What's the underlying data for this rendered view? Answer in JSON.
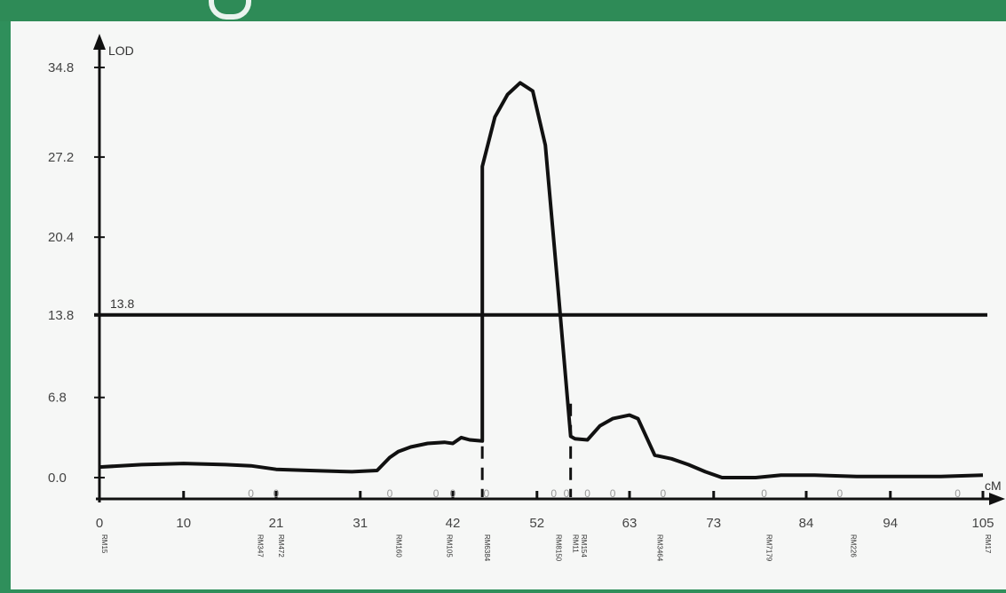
{
  "chart_data": {
    "type": "line",
    "title": "",
    "ylabel": "LOD",
    "xlabel": "cM",
    "ylim": [
      0,
      34.8
    ],
    "xlim": [
      0,
      105
    ],
    "y_ticks": [
      "0.0",
      "6.8",
      "13.8",
      "20.4",
      "27.2",
      "34.8"
    ],
    "y_tick_values": [
      0,
      6.8,
      13.8,
      20.4,
      27.2,
      34.8
    ],
    "x_ticks": [
      "0",
      "10",
      "21",
      "31",
      "42",
      "52",
      "63",
      "73",
      "84",
      "94",
      "105"
    ],
    "x_tick_values": [
      0,
      10,
      21,
      31,
      42,
      52,
      63,
      73,
      84,
      94,
      105
    ],
    "threshold": {
      "value": 13.8,
      "label": "13.8"
    },
    "series": [
      {
        "x": [
          0,
          5,
          10,
          15,
          18,
          21,
          25,
          30,
          33,
          34.5,
          35.5,
          37,
          39,
          41,
          42,
          43,
          44,
          45.5,
          45.5,
          47,
          48.5,
          50,
          51.5,
          53,
          54.5,
          56,
          56.5,
          58,
          59.5,
          61,
          63,
          64,
          66,
          68,
          70,
          72,
          74,
          76,
          78,
          81,
          85,
          90,
          95,
          100,
          105
        ],
        "y": [
          0.9,
          1.1,
          1.2,
          1.1,
          1.0,
          0.7,
          0.6,
          0.5,
          0.6,
          1.7,
          2.2,
          2.6,
          2.9,
          3.0,
          2.9,
          3.4,
          3.2,
          3.1,
          26.4,
          30.6,
          32.5,
          33.5,
          32.8,
          28.2,
          16.0,
          3.5,
          3.3,
          3.2,
          4.4,
          5.0,
          5.3,
          5.0,
          1.9,
          1.6,
          1.1,
          0.5,
          0.0,
          0.0,
          0.0,
          0.2,
          0.2,
          0.1,
          0.1,
          0.1,
          0.2
        ]
      }
    ],
    "dashed_markers_x": [
      45.5,
      56
    ],
    "markers": [
      {
        "x": 0,
        "name": "RM15"
      },
      {
        "x": 18.5,
        "name": "RM347"
      },
      {
        "x": 21,
        "name": "RM472"
      },
      {
        "x": 35,
        "name": "RM160"
      },
      {
        "x": 41,
        "name": "RM105"
      },
      {
        "x": 45.5,
        "name": "RM6384"
      },
      {
        "x": 54,
        "name": "RM8150"
      },
      {
        "x": 56,
        "name": "RM11"
      },
      {
        "x": 57,
        "name": "RM154"
      },
      {
        "x": 66,
        "name": "RM3464"
      },
      {
        "x": 79,
        "name": "RM7179"
      },
      {
        "x": 89,
        "name": "RM226"
      },
      {
        "x": 105,
        "name": "RM17"
      }
    ],
    "zero_marks_x": [
      18,
      21,
      34.5,
      40,
      42,
      46,
      54,
      55.5,
      58,
      61,
      67,
      79,
      88,
      102
    ],
    "grid": false
  },
  "colors": {
    "frame": "#2e8b57",
    "panel": "#f6f7f6",
    "line": "#111111"
  }
}
